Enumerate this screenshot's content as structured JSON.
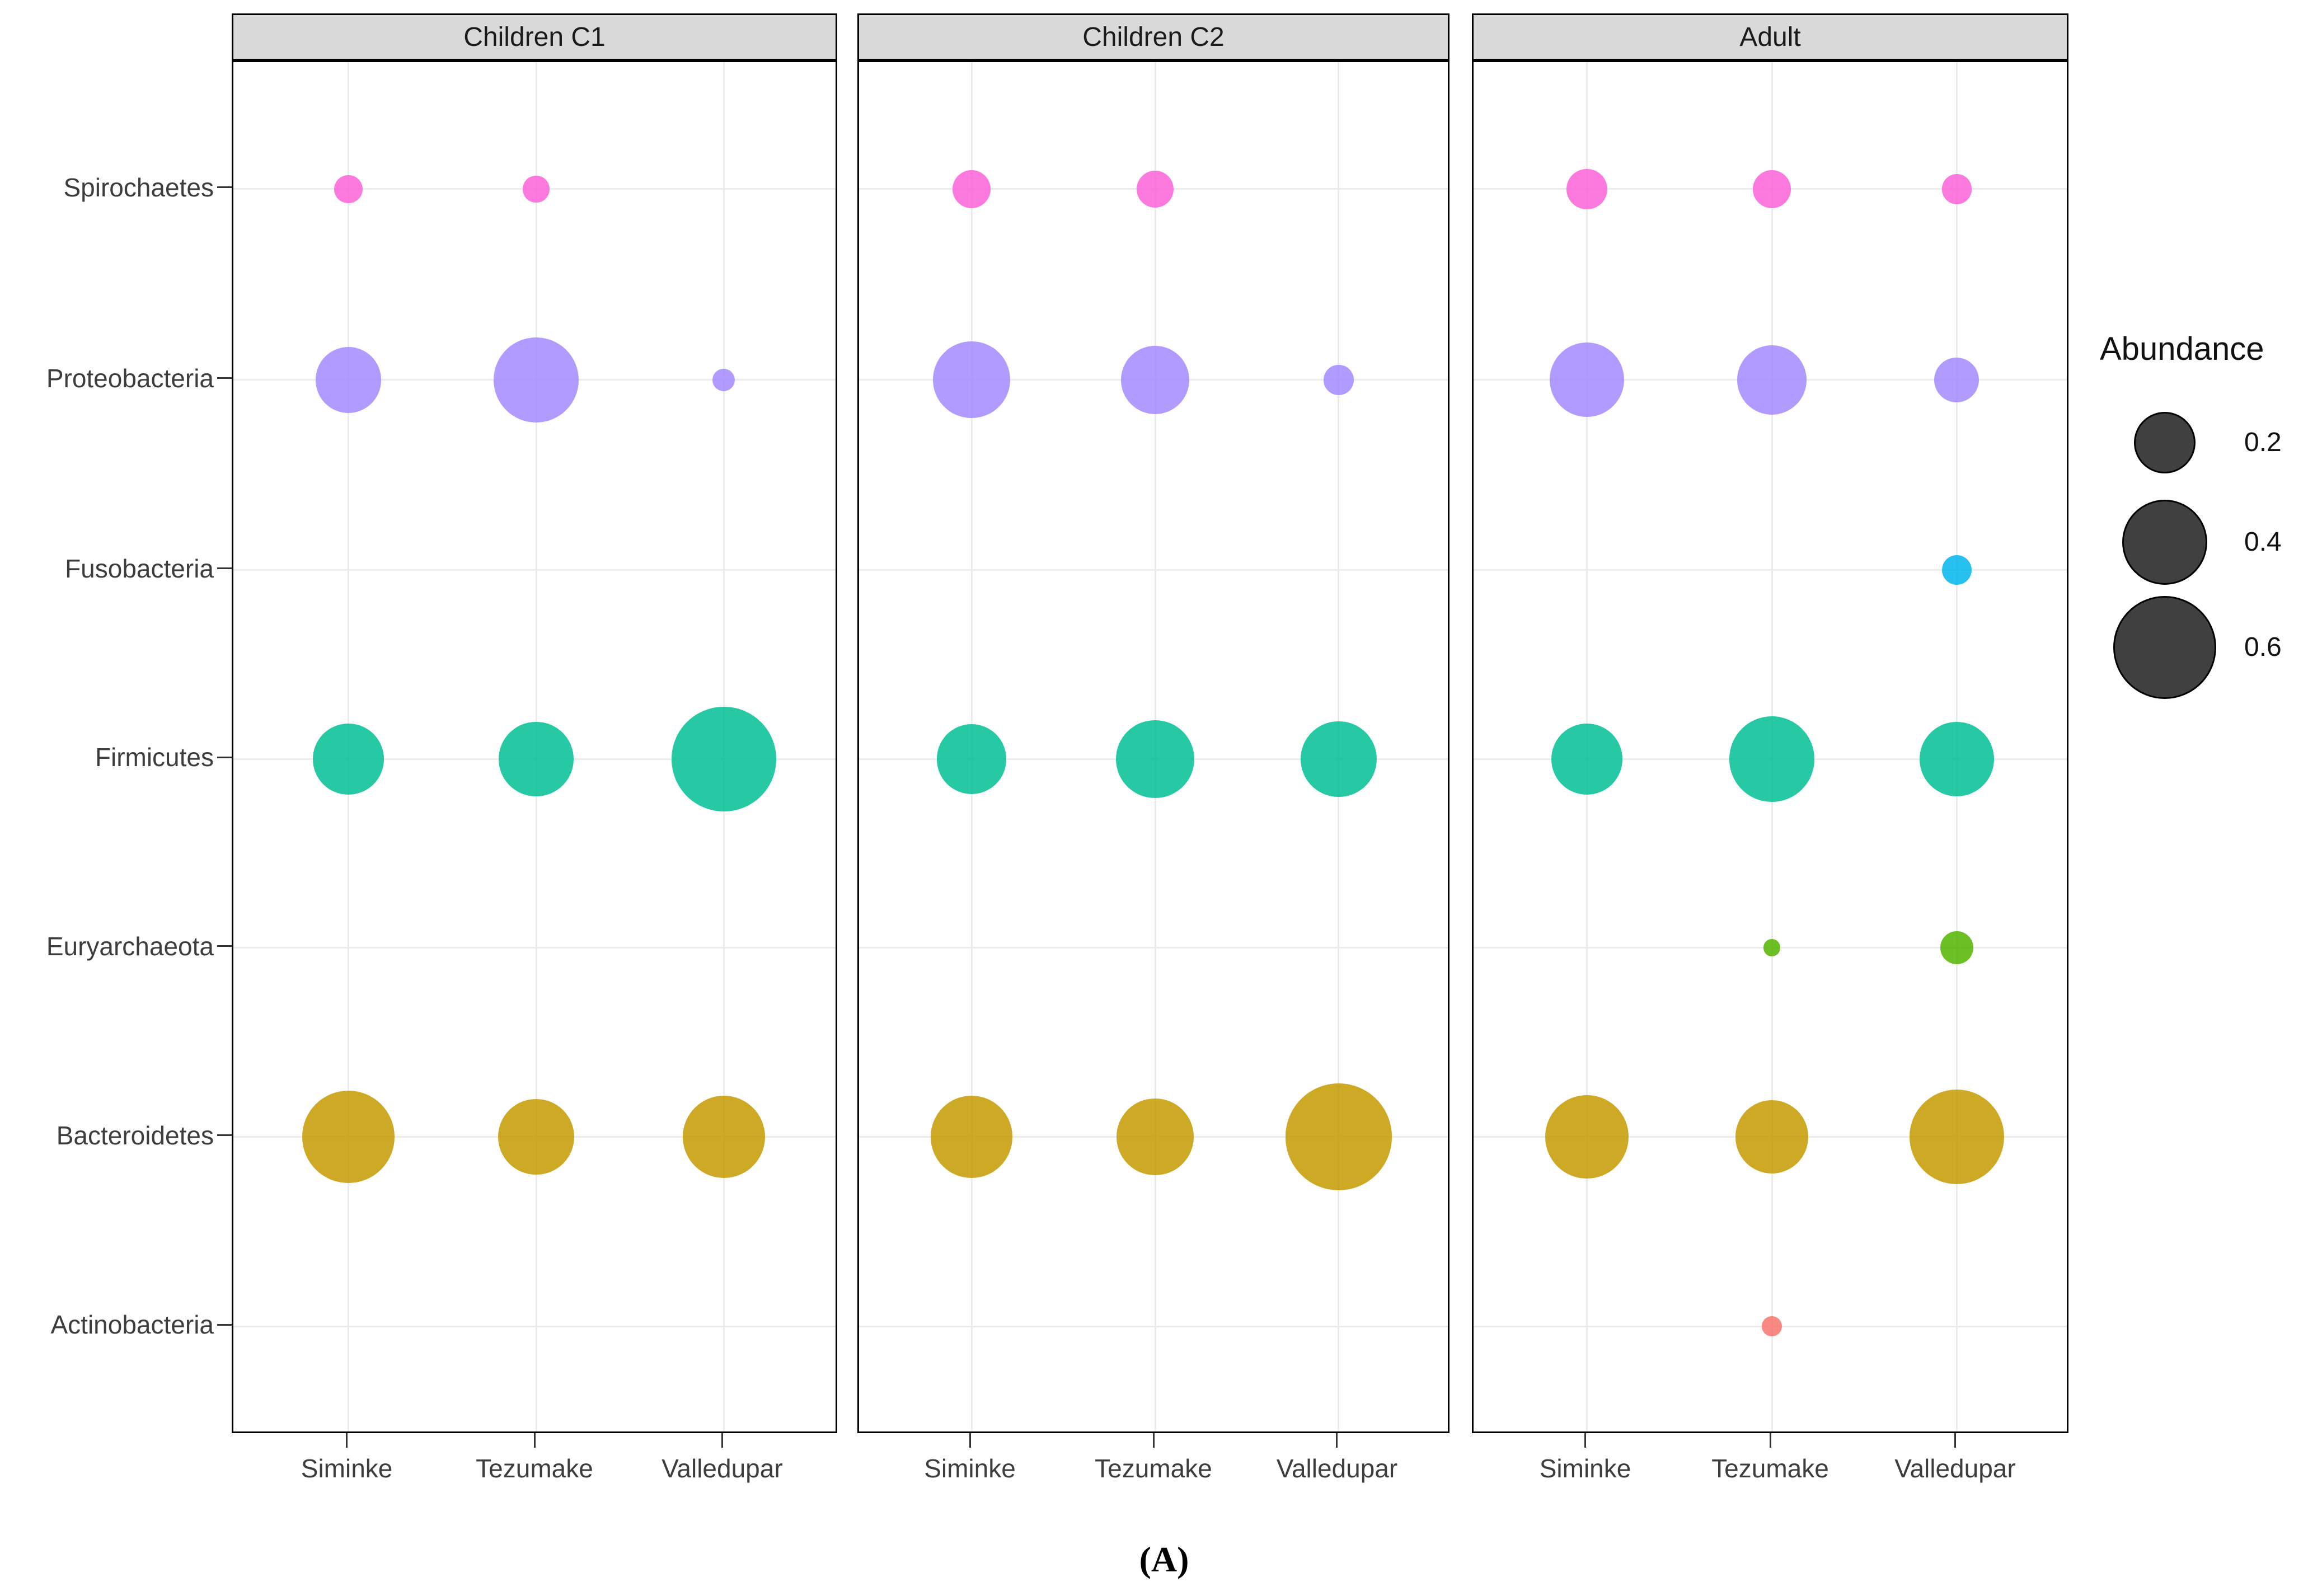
{
  "chart_data": {
    "type": "bubble",
    "facets": [
      "Children C1",
      "Children C2",
      "Adult"
    ],
    "x_categories": [
      "Siminke",
      "Tezumake",
      "Valledupar"
    ],
    "y_categories": [
      "Spirochaetes",
      "Proteobacteria",
      "Fusobacteria",
      "Firmicutes",
      "Euryarchaeota",
      "Bacteroidetes",
      "Actinobacteria"
    ],
    "legend": {
      "title": "Abundance",
      "breaks": [
        0.2,
        0.4,
        0.6
      ],
      "swatch_color": "#404040"
    },
    "caption": "(A)",
    "palette": {
      "Spirochaetes": "#FB61D7",
      "Proteobacteria": "#A58AFF",
      "Fusobacteria": "#00B6EB",
      "Firmicutes": "#00C094",
      "Euryarchaeota": "#53B400",
      "Bacteroidetes": "#C49A00",
      "Actinobacteria": "#F8766D"
    },
    "style_colors": {
      "header_bg": "#D9D9D9",
      "grid": "#EBEBEB",
      "axis_text": "#3D3D3D",
      "panel_border": "#000000"
    },
    "points": [
      {
        "facet": "Children C1",
        "x": "Siminke",
        "phylum": "Spirochaetes",
        "abundance": 0.035
      },
      {
        "facet": "Children C1",
        "x": "Tezumake",
        "phylum": "Spirochaetes",
        "abundance": 0.03
      },
      {
        "facet": "Children C1",
        "x": "Siminke",
        "phylum": "Proteobacteria",
        "abundance": 0.23
      },
      {
        "facet": "Children C1",
        "x": "Tezumake",
        "phylum": "Proteobacteria",
        "abundance": 0.4
      },
      {
        "facet": "Children C1",
        "x": "Valledupar",
        "phylum": "Proteobacteria",
        "abundance": 0.02
      },
      {
        "facet": "Children C1",
        "x": "Siminke",
        "phylum": "Firmicutes",
        "abundance": 0.27
      },
      {
        "facet": "Children C1",
        "x": "Tezumake",
        "phylum": "Firmicutes",
        "abundance": 0.3
      },
      {
        "facet": "Children C1",
        "x": "Valledupar",
        "phylum": "Firmicutes",
        "abundance": 0.61
      },
      {
        "facet": "Children C1",
        "x": "Siminke",
        "phylum": "Bacteroidetes",
        "abundance": 0.47
      },
      {
        "facet": "Children C1",
        "x": "Tezumake",
        "phylum": "Bacteroidetes",
        "abundance": 0.31
      },
      {
        "facet": "Children C1",
        "x": "Valledupar",
        "phylum": "Bacteroidetes",
        "abundance": 0.37
      },
      {
        "facet": "Children C2",
        "x": "Siminke",
        "phylum": "Spirochaetes",
        "abundance": 0.07
      },
      {
        "facet": "Children C2",
        "x": "Tezumake",
        "phylum": "Spirochaetes",
        "abundance": 0.065
      },
      {
        "facet": "Children C2",
        "x": "Siminke",
        "phylum": "Proteobacteria",
        "abundance": 0.32
      },
      {
        "facet": "Children C2",
        "x": "Tezumake",
        "phylum": "Proteobacteria",
        "abundance": 0.25
      },
      {
        "facet": "Children C2",
        "x": "Valledupar",
        "phylum": "Proteobacteria",
        "abundance": 0.04
      },
      {
        "facet": "Children C2",
        "x": "Siminke",
        "phylum": "Firmicutes",
        "abundance": 0.26
      },
      {
        "facet": "Children C2",
        "x": "Tezumake",
        "phylum": "Firmicutes",
        "abundance": 0.33
      },
      {
        "facet": "Children C2",
        "x": "Valledupar",
        "phylum": "Firmicutes",
        "abundance": 0.31
      },
      {
        "facet": "Children C2",
        "x": "Siminke",
        "phylum": "Bacteroidetes",
        "abundance": 0.37
      },
      {
        "facet": "Children C2",
        "x": "Tezumake",
        "phylum": "Bacteroidetes",
        "abundance": 0.32
      },
      {
        "facet": "Children C2",
        "x": "Valledupar",
        "phylum": "Bacteroidetes",
        "abundance": 0.64
      },
      {
        "facet": "Adult",
        "x": "Siminke",
        "phylum": "Spirochaetes",
        "abundance": 0.08
      },
      {
        "facet": "Adult",
        "x": "Tezumake",
        "phylum": "Spirochaetes",
        "abundance": 0.07
      },
      {
        "facet": "Adult",
        "x": "Valledupar",
        "phylum": "Spirochaetes",
        "abundance": 0.04
      },
      {
        "facet": "Adult",
        "x": "Siminke",
        "phylum": "Proteobacteria",
        "abundance": 0.3
      },
      {
        "facet": "Adult",
        "x": "Tezumake",
        "phylum": "Proteobacteria",
        "abundance": 0.26
      },
      {
        "facet": "Adult",
        "x": "Valledupar",
        "phylum": "Proteobacteria",
        "abundance": 0.1
      },
      {
        "facet": "Adult",
        "x": "Valledupar",
        "phylum": "Fusobacteria",
        "abundance": 0.04
      },
      {
        "facet": "Adult",
        "x": "Siminke",
        "phylum": "Firmicutes",
        "abundance": 0.27
      },
      {
        "facet": "Adult",
        "x": "Tezumake",
        "phylum": "Firmicutes",
        "abundance": 0.4
      },
      {
        "facet": "Adult",
        "x": "Valledupar",
        "phylum": "Firmicutes",
        "abundance": 0.3
      },
      {
        "facet": "Adult",
        "x": "Tezumake",
        "phylum": "Euryarchaeota",
        "abundance": 0.01
      },
      {
        "facet": "Adult",
        "x": "Valledupar",
        "phylum": "Euryarchaeota",
        "abundance": 0.05
      },
      {
        "facet": "Adult",
        "x": "Siminke",
        "phylum": "Bacteroidetes",
        "abundance": 0.38
      },
      {
        "facet": "Adult",
        "x": "Tezumake",
        "phylum": "Bacteroidetes",
        "abundance": 0.29
      },
      {
        "facet": "Adult",
        "x": "Valledupar",
        "phylum": "Bacteroidetes",
        "abundance": 0.5
      },
      {
        "facet": "Adult",
        "x": "Tezumake",
        "phylum": "Actinobacteria",
        "abundance": 0.015
      }
    ]
  }
}
